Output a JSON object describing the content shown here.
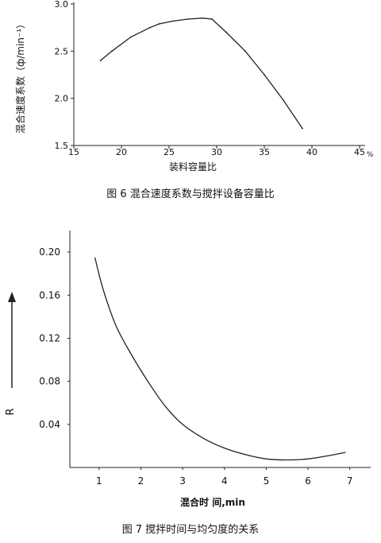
{
  "chart_data": [
    {
      "type": "line",
      "title": "",
      "caption": "图 6 混合速度系数与搅拌设备容量比",
      "xlabel": "装料容量比",
      "ylabel": "混合速度系数（ф/min⁻¹）",
      "x_unit": "%",
      "xlim": [
        15,
        45
      ],
      "ylim": [
        1.5,
        3.0
      ],
      "x_ticks": [
        "15",
        "20",
        "25",
        "30",
        "35",
        "40",
        "45"
      ],
      "y_ticks": [
        "1.5",
        "2.0",
        "2.5",
        "3.0"
      ],
      "series": [
        {
          "x": [
            17.8,
            19.0,
            21.0,
            23.0,
            24.0,
            25.5,
            27.0,
            28.5,
            29.5,
            31.0,
            33.0,
            35.0,
            37.0,
            39.0
          ],
          "y": [
            2.4,
            2.5,
            2.65,
            2.75,
            2.79,
            2.82,
            2.84,
            2.85,
            2.84,
            2.7,
            2.5,
            2.25,
            1.98,
            1.68
          ]
        }
      ]
    },
    {
      "type": "line",
      "title": "",
      "caption": "图 7 搅拌时间与均匀度的关系",
      "xlabel": "混合时 间,min",
      "ylabel": "R",
      "xlim": [
        0.3,
        7.5
      ],
      "ylim": [
        0.0,
        0.22
      ],
      "x_ticks": [
        "1",
        "2",
        "3",
        "4",
        "5",
        "6",
        "7"
      ],
      "y_ticks": [
        "0.04",
        "0.08",
        "0.12",
        "0.16",
        "0.20"
      ],
      "series": [
        {
          "x": [
            0.9,
            1.1,
            1.4,
            1.8,
            2.2,
            2.6,
            3.0,
            3.5,
            4.0,
            4.5,
            5.0,
            5.5,
            6.0,
            6.5,
            6.9
          ],
          "y": [
            0.195,
            0.165,
            0.132,
            0.103,
            0.078,
            0.056,
            0.04,
            0.027,
            0.018,
            0.012,
            0.008,
            0.007,
            0.008,
            0.011,
            0.014
          ]
        }
      ]
    }
  ]
}
